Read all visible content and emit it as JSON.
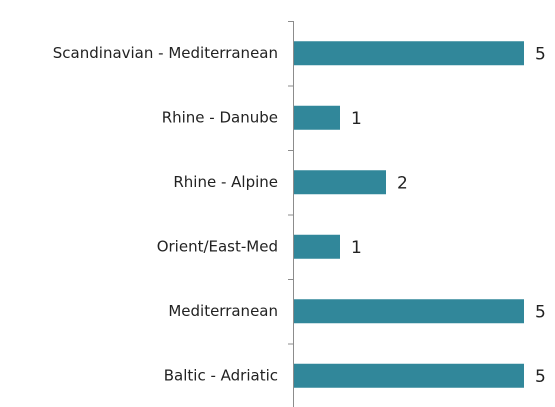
{
  "chart_data": {
    "type": "bar",
    "orientation": "horizontal",
    "categories": [
      "Scandinavian - Mediterranean",
      "Rhine - Danube",
      "Rhine - Alpine",
      "Orient/East-Med",
      "Mediterranean",
      "Baltic - Adriatic"
    ],
    "values": [
      5,
      1,
      2,
      1,
      5,
      5
    ],
    "color": "#31879a"
  }
}
